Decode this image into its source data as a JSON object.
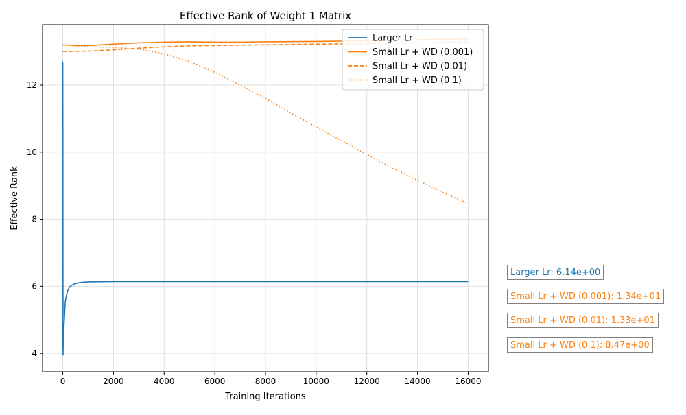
{
  "chart_data": {
    "type": "line",
    "title": "Effective Rank of Weight 1 Matrix",
    "xlabel": "Training Iterations",
    "ylabel": "Effective Rank",
    "xlim": [
      -800,
      16800
    ],
    "ylim": [
      3.45,
      13.8
    ],
    "xticks": [
      0,
      2000,
      4000,
      6000,
      8000,
      10000,
      12000,
      14000,
      16000
    ],
    "yticks": [
      4,
      6,
      8,
      10,
      12
    ],
    "grid": true,
    "legend_position": "top-right",
    "colors": {
      "blue": "#1f77b4",
      "orange": "#ff7f0e"
    },
    "series": [
      {
        "name": "Larger Lr",
        "color": "#1f77b4",
        "dash": "solid",
        "x": [
          0,
          5,
          10,
          20,
          40,
          60,
          80,
          100,
          150,
          200,
          250,
          300,
          400,
          500,
          600,
          800,
          1000,
          1500,
          2000,
          4000,
          8000,
          12000,
          16000
        ],
        "y": [
          12.7,
          10.5,
          3.95,
          4.3,
          4.7,
          5.0,
          5.3,
          5.55,
          5.75,
          5.88,
          5.95,
          6.0,
          6.05,
          6.08,
          6.1,
          6.12,
          6.13,
          6.135,
          6.14,
          6.14,
          6.14,
          6.14,
          6.14
        ]
      },
      {
        "name": "Small Lr + WD (0.001)",
        "color": "#ff7f0e",
        "dash": "solid",
        "x": [
          0,
          500,
          1000,
          2000,
          3000,
          4000,
          5000,
          6000,
          7000,
          8000,
          10000,
          12000,
          14000,
          16000
        ],
        "y": [
          13.2,
          13.18,
          13.18,
          13.22,
          13.26,
          13.28,
          13.29,
          13.28,
          13.28,
          13.29,
          13.3,
          13.32,
          13.35,
          13.38
        ]
      },
      {
        "name": "Small Lr + WD (0.01)",
        "color": "#ff7f0e",
        "dash": "dashed",
        "x": [
          0,
          1000,
          2000,
          3000,
          4000,
          5000,
          6000,
          8000,
          10000,
          12000,
          14000,
          16000
        ],
        "y": [
          13.0,
          13.01,
          13.05,
          13.1,
          13.14,
          13.17,
          13.18,
          13.2,
          13.22,
          13.24,
          13.26,
          13.28
        ]
      },
      {
        "name": "Small Lr + WD (0.1)",
        "color": "#ff7f0e",
        "dash": "dotted",
        "x": [
          0,
          500,
          1000,
          2000,
          3000,
          4000,
          5000,
          6000,
          7000,
          8000,
          9000,
          10000,
          11000,
          12000,
          13000,
          14000,
          15000,
          16000
        ],
        "y": [
          13.2,
          13.17,
          13.15,
          13.12,
          13.07,
          12.93,
          12.7,
          12.38,
          12.0,
          11.6,
          11.17,
          10.75,
          10.34,
          9.93,
          9.53,
          9.16,
          8.8,
          8.47
        ]
      }
    ],
    "annotations": [
      {
        "text": "Larger Lr: 6.14e+00",
        "color": "#1f77b4"
      },
      {
        "text": "Small Lr + WD (0.001): 1.34e+01",
        "color": "#ff7f0e"
      },
      {
        "text": "Small Lr + WD (0.01): 1.33e+01",
        "color": "#ff7f0e"
      },
      {
        "text": "Small Lr + WD (0.1): 8.47e+00",
        "color": "#ff7f0e"
      }
    ]
  }
}
